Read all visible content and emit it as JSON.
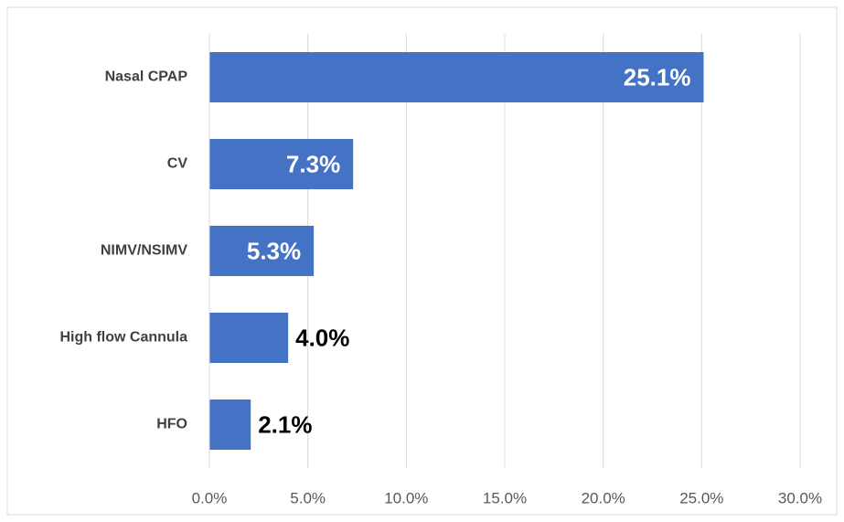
{
  "chart_data": {
    "type": "bar",
    "orientation": "horizontal",
    "categories": [
      "Nasal CPAP",
      "CV",
      "NIMV/NSIMV",
      "High flow Cannula",
      "HFO"
    ],
    "values": [
      25.1,
      7.3,
      5.3,
      4.0,
      2.1
    ],
    "value_labels": [
      "25.1%",
      "7.3%",
      "5.3%",
      "4.0%",
      "2.1%"
    ],
    "color": "#4472c4",
    "xlim": [
      0,
      30
    ],
    "xticks": [
      {
        "value": 0,
        "label": "0.0%"
      },
      {
        "value": 5,
        "label": "5.0%"
      },
      {
        "value": 10,
        "label": "10.0%"
      },
      {
        "value": 15,
        "label": "15.0%"
      },
      {
        "value": 20,
        "label": "20.0%"
      },
      {
        "value": 25,
        "label": "25.0%"
      },
      {
        "value": 30,
        "label": "30.0%"
      }
    ],
    "grid": true
  }
}
